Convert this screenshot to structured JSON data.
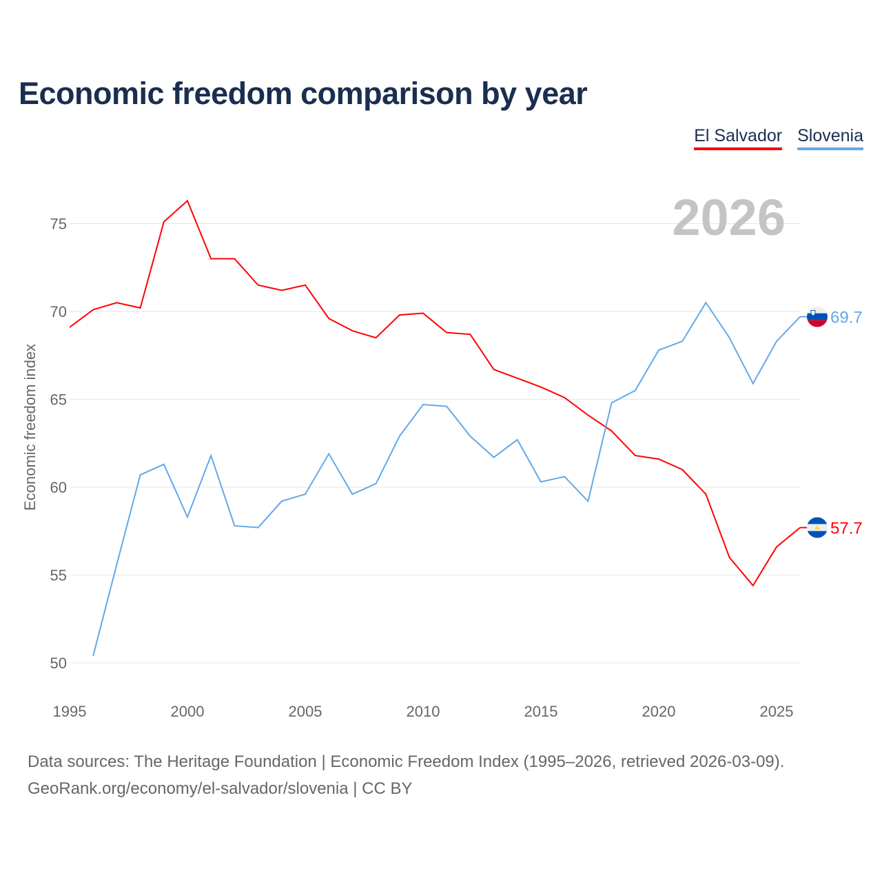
{
  "chart_data": {
    "type": "line",
    "title": "Economic freedom comparison by year",
    "xlabel": "",
    "ylabel": "Economic freedom index",
    "xlim": [
      1995,
      2026
    ],
    "ylim": [
      48.5,
      77
    ],
    "x_ticks": [
      "1995",
      "2000",
      "2005",
      "2010",
      "2015",
      "2020",
      "2025"
    ],
    "y_ticks": [
      "50",
      "55",
      "60",
      "65",
      "70",
      "75"
    ],
    "grid": true,
    "legend_position": "top-right",
    "year_label": "2026",
    "series": [
      {
        "name": "El Salvador",
        "color": "#ff0000",
        "end_label": "57.7",
        "flag": "el-salvador-flag",
        "x": [
          1995,
          1996,
          1997,
          1998,
          1999,
          2000,
          2001,
          2002,
          2003,
          2004,
          2005,
          2006,
          2007,
          2008,
          2009,
          2010,
          2011,
          2012,
          2013,
          2014,
          2015,
          2016,
          2017,
          2018,
          2019,
          2020,
          2021,
          2022,
          2023,
          2024,
          2025,
          2026
        ],
        "values": [
          69.1,
          70.1,
          70.5,
          70.2,
          75.1,
          76.3,
          73.0,
          73.0,
          71.5,
          71.2,
          71.5,
          69.6,
          68.9,
          68.5,
          69.8,
          69.9,
          68.8,
          68.7,
          66.7,
          66.2,
          65.7,
          65.1,
          64.1,
          63.2,
          61.8,
          61.6,
          61.0,
          59.6,
          56.0,
          54.4,
          56.6,
          57.7
        ]
      },
      {
        "name": "Slovenia",
        "color": "#62a8e8",
        "end_label": "69.7",
        "flag": "slovenia-flag",
        "x": [
          1996,
          1997,
          1998,
          1999,
          2000,
          2001,
          2002,
          2003,
          2004,
          2005,
          2006,
          2007,
          2008,
          2009,
          2010,
          2011,
          2012,
          2013,
          2014,
          2015,
          2016,
          2017,
          2018,
          2019,
          2020,
          2021,
          2022,
          2023,
          2024,
          2025,
          2026
        ],
        "values": [
          50.4,
          55.6,
          60.7,
          61.3,
          58.3,
          61.8,
          57.8,
          57.7,
          59.2,
          59.6,
          61.9,
          59.6,
          60.2,
          62.9,
          64.7,
          64.6,
          62.9,
          61.7,
          62.7,
          60.3,
          60.6,
          59.2,
          64.8,
          65.5,
          67.8,
          68.3,
          70.5,
          68.5,
          65.9,
          68.3,
          69.7
        ]
      }
    ]
  },
  "footer": {
    "line1": "Data sources: The Heritage Foundation | Economic Freedom Index (1995–2026, retrieved 2026-03-09).",
    "line2": "GeoRank.org/economy/el-salvador/slovenia | CC BY"
  }
}
